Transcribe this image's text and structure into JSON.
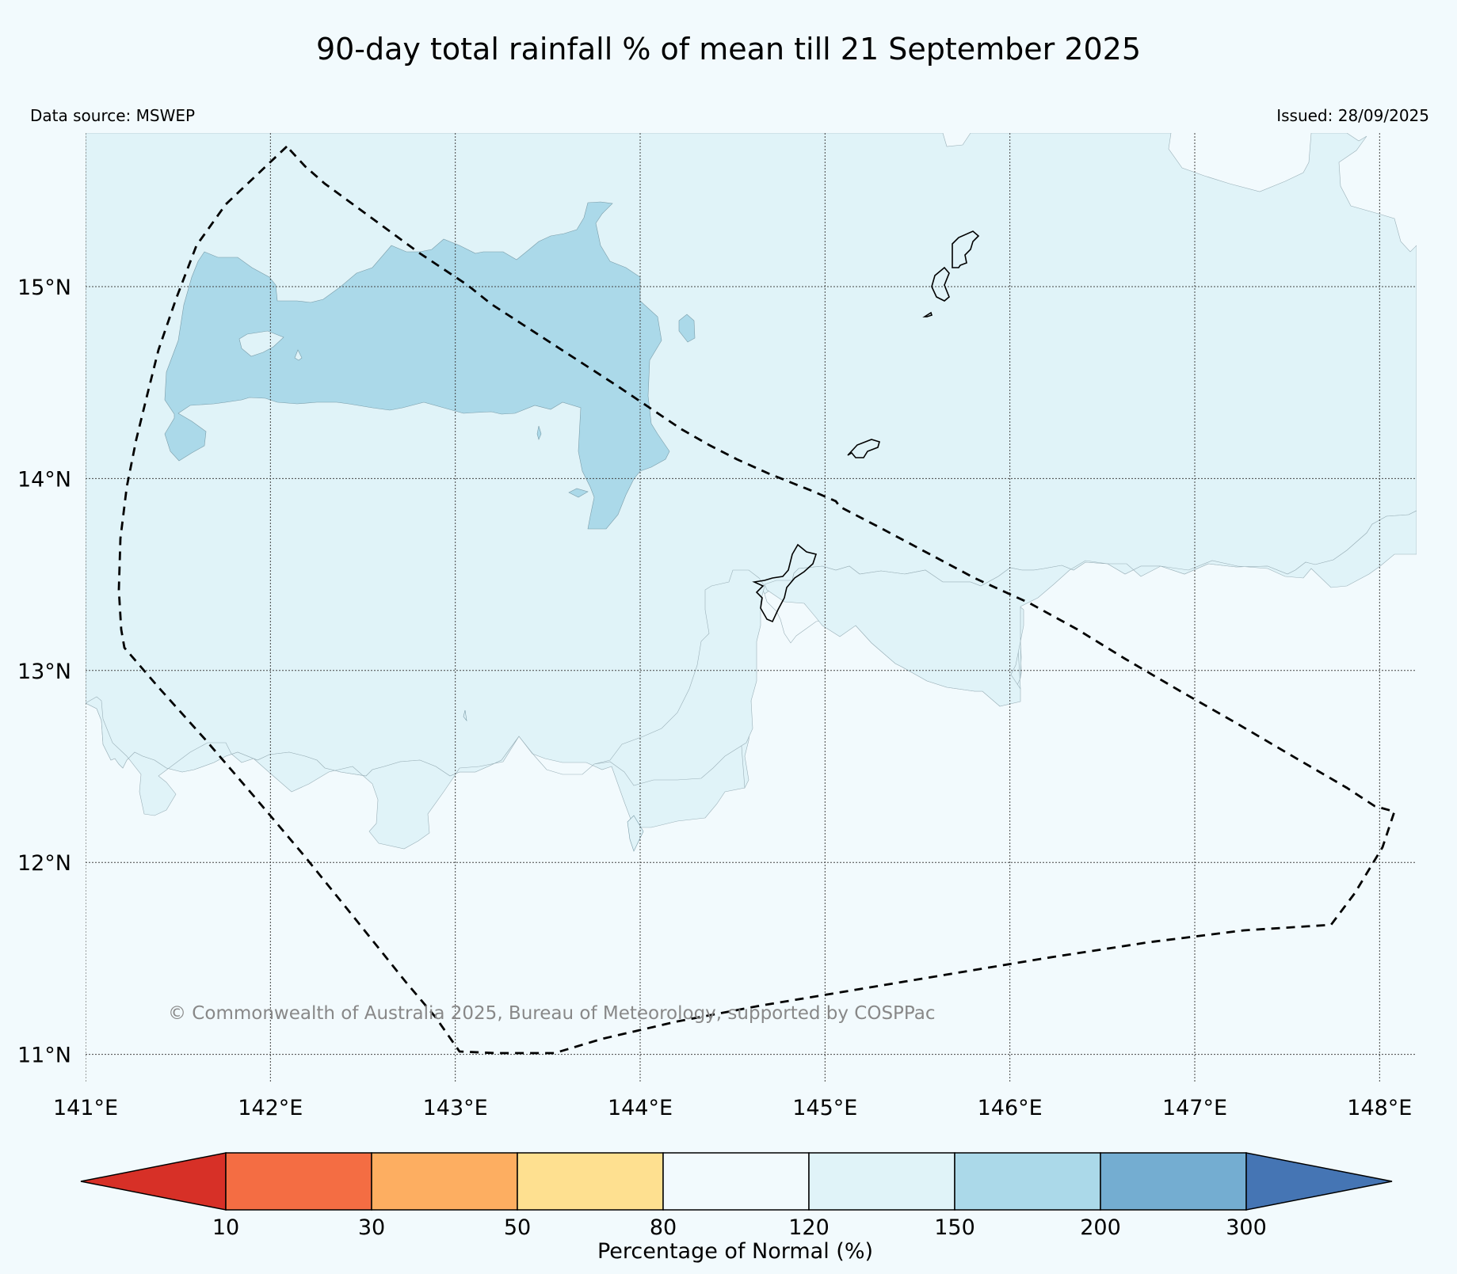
{
  "title": "90-day total rainfall % of mean till 21 September 2025",
  "data_source": "Data source: MSWEP",
  "issued": "Issued: 28/09/2025",
  "copyright": "© Commonwealth of Australia 2025, Bureau of Meteorology, supported by COSPPac",
  "map": {
    "lon_range": [
      141,
      148.2
    ],
    "lat_range": [
      10.85,
      15.8
    ],
    "lon_ticks": [
      141,
      142,
      143,
      144,
      145,
      146,
      147,
      148
    ],
    "lon_tick_labels": [
      "141°E",
      "142°E",
      "143°E",
      "144°E",
      "145°E",
      "146°E",
      "147°E",
      "148°E"
    ],
    "lat_ticks": [
      11,
      12,
      13,
      14,
      15
    ],
    "lat_tick_labels": [
      "11°N",
      "12°N",
      "13°N",
      "14°N",
      "15°N"
    ],
    "grid": true
  },
  "colorbar": {
    "title": "Percentage of Normal (%)",
    "boundaries": [
      "10",
      "30",
      "50",
      "80",
      "120",
      "150",
      "200",
      "300"
    ],
    "colors": [
      "#d73027",
      "#f46d43",
      "#fdae61",
      "#fee090",
      "#f2fafd",
      "#e0f3f8",
      "#abd9e9",
      "#74add1",
      "#4575b4"
    ],
    "extend": "both"
  },
  "shading": {
    "120_150_color": "#e0f3f8",
    "150_200_color": "#abd9e9"
  }
}
